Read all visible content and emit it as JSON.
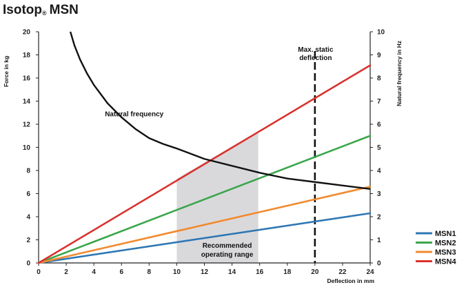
{
  "header": {
    "title_main": "Isotop",
    "title_sub": "®",
    "title_rest": "MSN"
  },
  "chart_data": {
    "type": "line",
    "title": "Isotop® MSN",
    "xlabel": "Deflection in mm",
    "ylabel": "Force in kg",
    "y2label": "Natural frequency in Hz",
    "xlim": [
      0,
      24
    ],
    "ylim": [
      0,
      20
    ],
    "y2lim": [
      0,
      10
    ],
    "x_ticks": [
      0,
      2,
      4,
      6,
      8,
      10,
      12,
      14,
      16,
      18,
      20,
      22,
      24
    ],
    "y_ticks": [
      0,
      2,
      4,
      6,
      8,
      10,
      12,
      14,
      16,
      18,
      20
    ],
    "y2_ticks": [
      0,
      1,
      2,
      3,
      4,
      5,
      6,
      7,
      8,
      9,
      10
    ],
    "series": [
      {
        "name": "MSN1",
        "color": "#2f77b4",
        "x": [
          0,
          24
        ],
        "y": [
          0,
          4.3
        ]
      },
      {
        "name": "MSN2",
        "color": "#3aa64b",
        "x": [
          0,
          24
        ],
        "y": [
          0,
          11.0
        ]
      },
      {
        "name": "MSN3",
        "color": "#f28a2e",
        "x": [
          0,
          24
        ],
        "y": [
          0,
          6.6
        ]
      },
      {
        "name": "MSN4",
        "color": "#d9322e",
        "x": [
          0,
          24
        ],
        "y": [
          0,
          17.1
        ]
      }
    ],
    "natural_frequency": {
      "label": "Natural frequency",
      "color": "#111111",
      "axis": "right",
      "x": [
        2.3,
        2.6,
        3.0,
        3.5,
        4.0,
        5.0,
        6.0,
        7.0,
        8.0,
        9.0,
        10.0,
        12.0,
        14.0,
        16.0,
        18.0,
        20.0,
        22.0,
        24.0
      ],
      "y": [
        10.0,
        9.4,
        8.8,
        8.2,
        7.7,
        6.9,
        6.3,
        5.8,
        5.4,
        5.15,
        4.95,
        4.5,
        4.2,
        3.9,
        3.65,
        3.5,
        3.35,
        3.2
      ]
    },
    "recommended_range": {
      "label_line1": "Recommended",
      "label_line2": "operating range",
      "polygon_x": [
        10,
        15.9,
        15.9,
        10
      ],
      "polygon_y": [
        0,
        0,
        11.4,
        7.3
      ],
      "color": "#d9d9dc"
    },
    "max_static": {
      "label_line1": "Max. static",
      "label_line2": "deflection",
      "x": 20
    },
    "legend_position": "bottom-right"
  }
}
